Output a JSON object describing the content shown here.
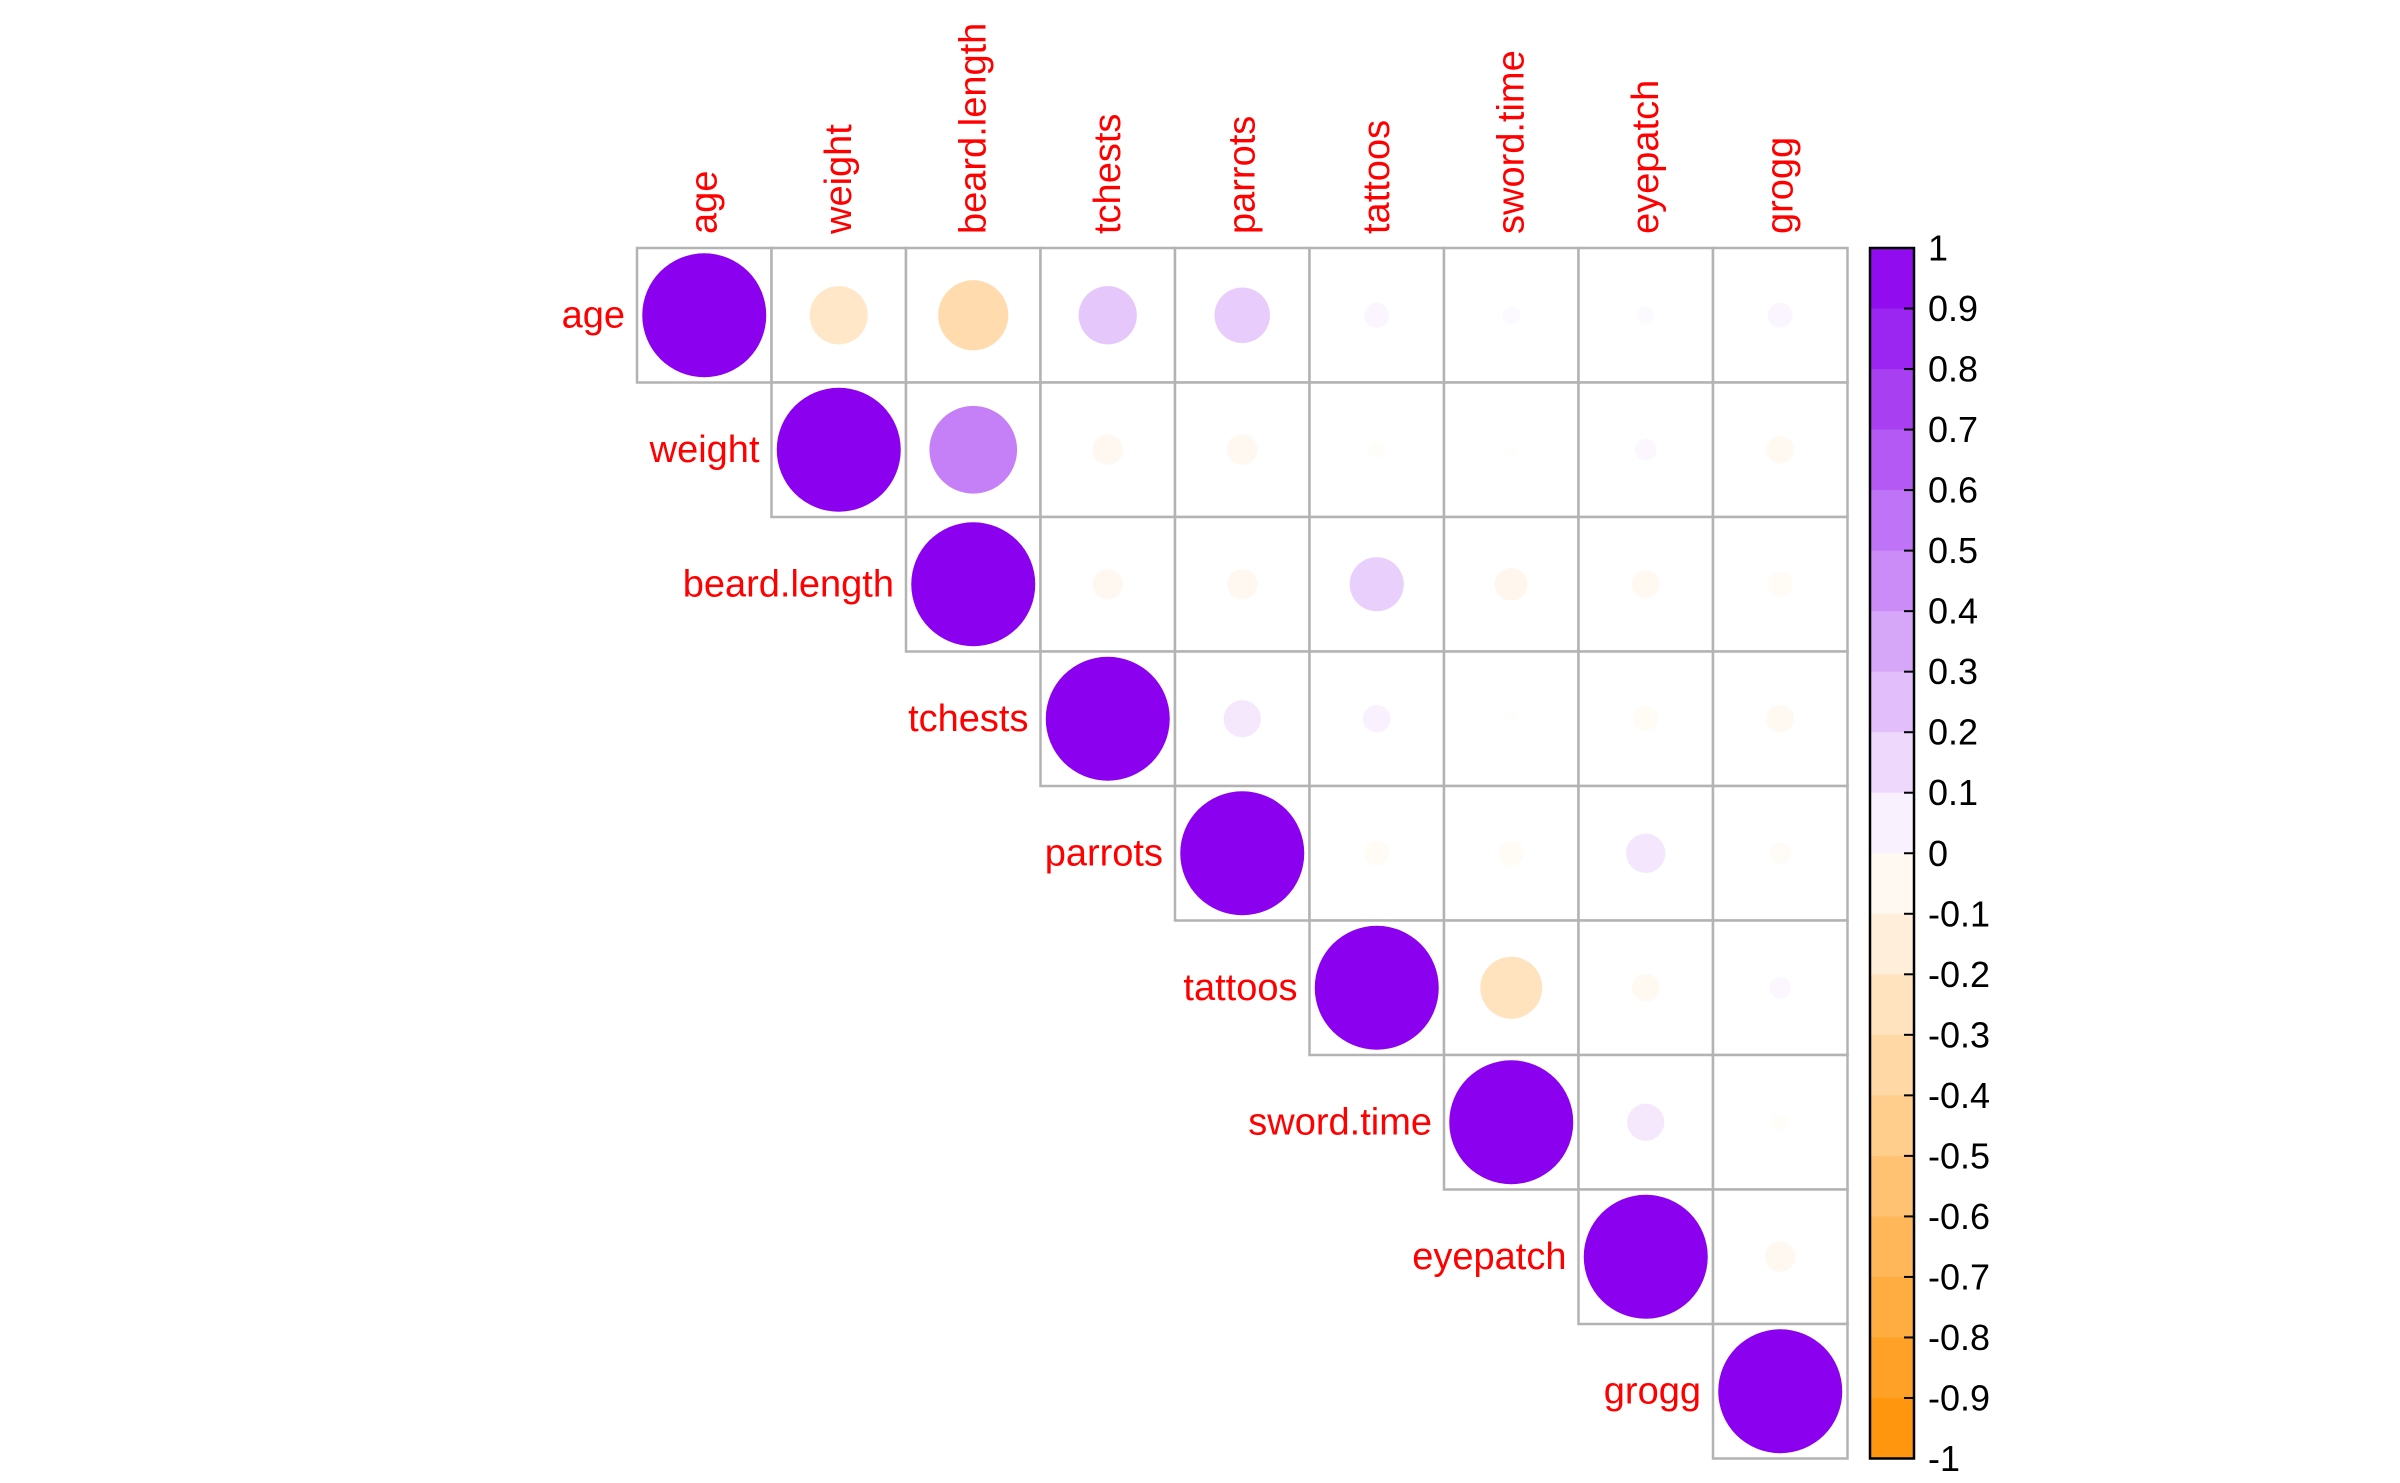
{
  "colors": {
    "label": "#ff0000",
    "grid": "#b3b3b3",
    "positive": "#8b00ee",
    "negative": "#ff9000",
    "zero": "#ffffff"
  },
  "chart_data": {
    "type": "heatmap",
    "style": "correlation-circle-upper",
    "variables": [
      "age",
      "weight",
      "beard.length",
      "tchests",
      "parrots",
      "tattoos",
      "sword.time",
      "eyepatch",
      "grogg"
    ],
    "matrix": [
      [
        1.0,
        -0.22,
        -0.32,
        0.22,
        0.2,
        0.04,
        0.02,
        0.02,
        0.04
      ],
      [
        -0.22,
        1.0,
        0.5,
        -0.06,
        -0.06,
        -0.02,
        -0.01,
        0.03,
        -0.05
      ],
      [
        -0.32,
        0.5,
        1.0,
        -0.06,
        -0.06,
        0.19,
        -0.07,
        -0.05,
        -0.04
      ],
      [
        0.22,
        -0.06,
        -0.06,
        1.0,
        0.09,
        0.05,
        -0.01,
        -0.04,
        -0.05
      ],
      [
        0.2,
        -0.06,
        -0.06,
        0.09,
        1.0,
        -0.04,
        -0.04,
        0.1,
        -0.03
      ],
      [
        0.04,
        -0.02,
        0.19,
        0.05,
        -0.04,
        1.0,
        -0.25,
        -0.05,
        0.03
      ],
      [
        0.02,
        -0.01,
        -0.07,
        -0.01,
        -0.04,
        -0.25,
        1.0,
        0.09,
        -0.02
      ],
      [
        0.02,
        0.03,
        -0.05,
        -0.04,
        0.1,
        -0.05,
        0.09,
        1.0,
        -0.06
      ],
      [
        0.04,
        -0.05,
        -0.04,
        -0.05,
        -0.03,
        0.03,
        -0.02,
        -0.06,
        1.0
      ]
    ],
    "legend": {
      "position": "right",
      "range": [
        -1,
        1
      ],
      "ticks": [
        "1",
        "0.9",
        "0.8",
        "0.7",
        "0.6",
        "0.5",
        "0.4",
        "0.3",
        "0.2",
        "0.1",
        "0",
        "-0.1",
        "-0.2",
        "-0.3",
        "-0.4",
        "-0.5",
        "-0.6",
        "-0.7",
        "-0.8",
        "-0.9",
        "-1"
      ]
    }
  }
}
